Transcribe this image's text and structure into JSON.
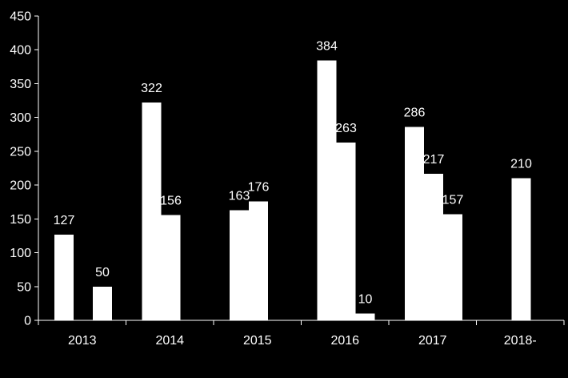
{
  "chart_data": {
    "type": "bar",
    "categories": [
      "2013",
      "2014",
      "2015",
      "2016",
      "2017",
      "2018-"
    ],
    "bars": [
      {
        "category": "2013",
        "slot": 0,
        "value": 127,
        "label": "127"
      },
      {
        "category": "2013",
        "slot": 2,
        "value": 50,
        "label": "50"
      },
      {
        "category": "2014",
        "slot": 0,
        "value": 322,
        "label": "322"
      },
      {
        "category": "2014",
        "slot": 1,
        "value": 156,
        "label": "156"
      },
      {
        "category": "2015",
        "slot": 0,
        "value": 163,
        "label": "163"
      },
      {
        "category": "2015",
        "slot": 1,
        "value": 176,
        "label": "176"
      },
      {
        "category": "2016",
        "slot": 0,
        "value": 384,
        "label": "384"
      },
      {
        "category": "2016",
        "slot": 1,
        "value": 263,
        "label": "263"
      },
      {
        "category": "2016",
        "slot": 2,
        "value": 10,
        "label": "10"
      },
      {
        "category": "2017",
        "slot": 0,
        "value": 286,
        "label": "286"
      },
      {
        "category": "2017",
        "slot": 1,
        "value": 217,
        "label": "217"
      },
      {
        "category": "2017",
        "slot": 2,
        "value": 157,
        "label": "157"
      },
      {
        "category": "2018-",
        "slot": 1,
        "value": 210,
        "label": "210"
      }
    ],
    "title": "",
    "xlabel": "",
    "ylabel": "",
    "ylim": [
      0,
      450
    ],
    "yticks": [
      "0",
      "50",
      "100",
      "150",
      "200",
      "250",
      "300",
      "350",
      "400",
      "450"
    ],
    "grid": false,
    "legend": "none",
    "colors": {
      "background": "#000000",
      "bars": "#ffffff",
      "text": "#ffffff",
      "axis": "#ffffff"
    }
  }
}
